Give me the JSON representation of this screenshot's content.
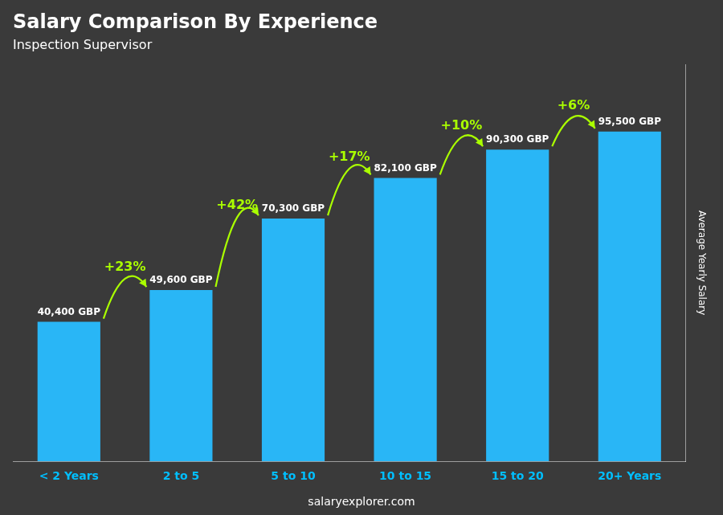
{
  "chart_data": {
    "type": "bar",
    "title": "Salary Comparison By Experience",
    "subtitle": "Inspection Supervisor",
    "categories": [
      "< 2 Years",
      "2 to 5",
      "5 to 10",
      "10 to 15",
      "15 to 20",
      "20+ Years"
    ],
    "values": [
      40400,
      49600,
      70300,
      82100,
      90300,
      95500
    ],
    "value_labels": [
      "40,400 GBP",
      "49,600 GBP",
      "70,300 GBP",
      "82,100 GBP",
      "90,300 GBP",
      "95,500 GBP"
    ],
    "data_labels": true,
    "annotations": [
      "+23%",
      "+42%",
      "+17%",
      "+10%",
      "+6%"
    ],
    "color": "#29B6F6",
    "ylabel": "Average Yearly Salary",
    "footer": "salaryexplorer.com",
    "ylim": [
      0,
      115000
    ],
    "grid": false,
    "tick_labels": "x"
  }
}
